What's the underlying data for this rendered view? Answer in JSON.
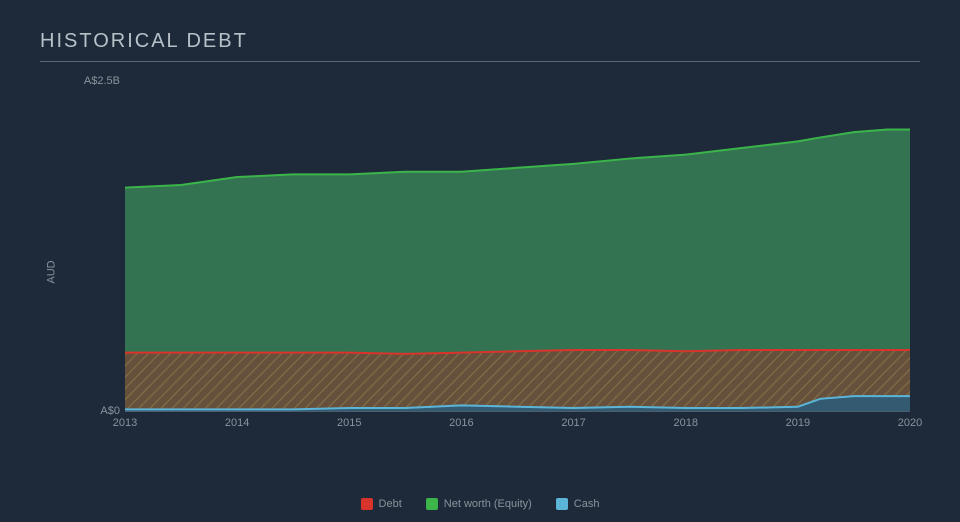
{
  "title": "HISTORICAL DEBT",
  "chart": {
    "type": "area",
    "background_color": "#1e2a3a",
    "border_color": "#5a6570",
    "text_color": "#8a929c",
    "ylabel": "AUD",
    "ylim": [
      0,
      2.5
    ],
    "yticks": [
      {
        "value": 0,
        "label": "A$0"
      },
      {
        "value": 2.5,
        "label": "A$2.5B"
      }
    ],
    "xlim": [
      2013,
      2020
    ],
    "xticks": [
      2013,
      2014,
      2015,
      2016,
      2017,
      2018,
      2019,
      2020
    ],
    "legend": [
      {
        "name": "Debt",
        "color": "#d9342b"
      },
      {
        "name": "Net worth (Equity)",
        "color": "#3bb54a"
      },
      {
        "name": "Cash",
        "color": "#5bb5d9"
      }
    ],
    "series": {
      "x": [
        2013.0,
        2013.5,
        2014.0,
        2014.5,
        2015.0,
        2015.5,
        2016.0,
        2016.5,
        2017.0,
        2017.5,
        2018.0,
        2018.5,
        2019.0,
        2019.2,
        2019.5,
        2019.8,
        2020.0
      ],
      "cash": [
        0.02,
        0.02,
        0.02,
        0.02,
        0.03,
        0.03,
        0.05,
        0.04,
        0.03,
        0.04,
        0.03,
        0.03,
        0.04,
        0.1,
        0.12,
        0.12,
        0.12
      ],
      "debt_top": [
        0.45,
        0.45,
        0.45,
        0.45,
        0.45,
        0.44,
        0.45,
        0.46,
        0.47,
        0.47,
        0.46,
        0.47,
        0.47,
        0.47,
        0.47,
        0.47,
        0.47
      ],
      "equity_top": [
        1.7,
        1.72,
        1.78,
        1.8,
        1.8,
        1.82,
        1.82,
        1.85,
        1.88,
        1.92,
        1.95,
        2.0,
        2.05,
        2.08,
        2.12,
        2.14,
        2.14
      ]
    },
    "colors": {
      "cash_line": "#5bb5d9",
      "cash_fill": "rgba(91,181,217,0.35)",
      "debt_line": "#d9342b",
      "debt_fill_base": "rgba(160,110,60,0.55)",
      "debt_hatch": "#7a6a45",
      "equity_line": "#3bb54a",
      "equity_fill": "rgba(59,140,90,0.75)",
      "axis_line": "#5a6570"
    },
    "line_width": 2
  }
}
